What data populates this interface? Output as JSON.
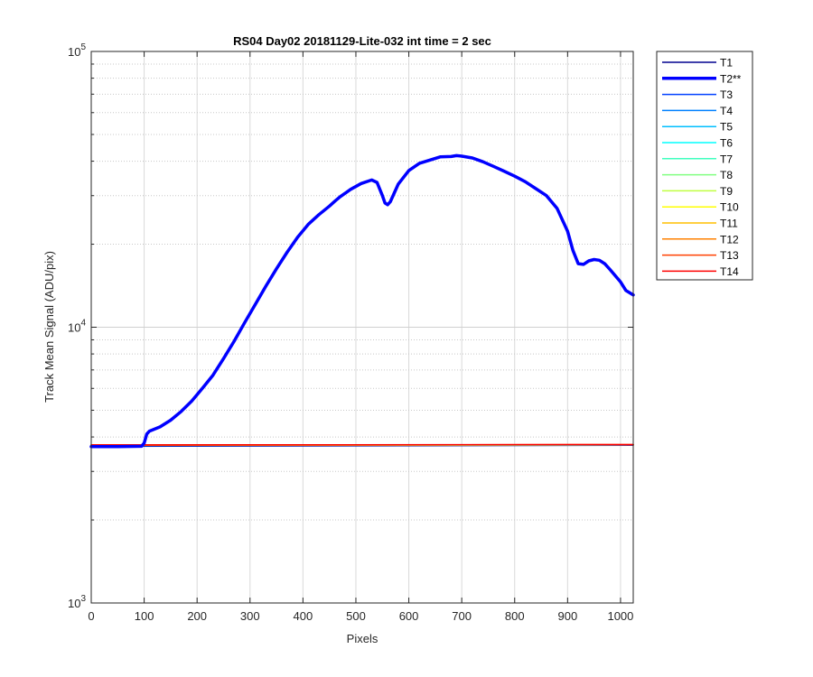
{
  "chart_data": {
    "type": "line",
    "title": "RS04 Day02 20181129-Lite-032 int time = 2 sec",
    "xlabel": "Pixels",
    "ylabel": "Track Mean Signal (ADU/pix)",
    "xlim": [
      0,
      1024
    ],
    "ylim": [
      1000,
      100000
    ],
    "yscale": "log",
    "x_ticks": [
      0,
      100,
      200,
      300,
      400,
      500,
      600,
      700,
      800,
      900,
      1000
    ],
    "y_ticks": [
      {
        "value": 1000,
        "base": "10",
        "exp": "3"
      },
      {
        "value": 10000,
        "base": "10",
        "exp": "4"
      },
      {
        "value": 100000,
        "base": "10",
        "exp": "5"
      }
    ],
    "grid": true,
    "legend_position": "outside-top-right",
    "highlighted_series": "T2**",
    "series": [
      {
        "name": "T1",
        "color": "#00008f",
        "x": [
          0,
          1024
        ],
        "y": [
          3700,
          3730
        ]
      },
      {
        "name": "T2**",
        "color": "#0000ff",
        "highlight": true,
        "x": [
          0,
          50,
          95,
          100,
          105,
          110,
          130,
          150,
          170,
          190,
          210,
          230,
          250,
          270,
          290,
          310,
          330,
          350,
          370,
          390,
          410,
          430,
          450,
          460,
          470,
          490,
          510,
          530,
          540,
          550,
          555,
          560,
          565,
          580,
          600,
          620,
          640,
          660,
          680,
          690,
          700,
          720,
          740,
          760,
          780,
          800,
          820,
          840,
          860,
          880,
          900,
          910,
          920,
          930,
          940,
          950,
          960,
          970,
          980,
          1000,
          1010,
          1024
        ],
        "y": [
          3690,
          3690,
          3700,
          3800,
          4100,
          4200,
          4350,
          4600,
          4950,
          5400,
          6000,
          6700,
          7700,
          8900,
          10400,
          12100,
          14100,
          16300,
          18700,
          21200,
          23600,
          25600,
          27500,
          28600,
          29700,
          31600,
          33200,
          34200,
          33500,
          30000,
          28200,
          27800,
          28500,
          33000,
          37000,
          39300,
          40400,
          41500,
          41600,
          41900,
          41700,
          41100,
          39800,
          38300,
          36800,
          35300,
          33700,
          31800,
          30000,
          27000,
          22300,
          19000,
          17000,
          16900,
          17400,
          17600,
          17500,
          17000,
          16200,
          14600,
          13600,
          13100
        ]
      },
      {
        "name": "T3",
        "color": "#0040ff",
        "x": [
          0,
          1024
        ],
        "y": [
          3720,
          3740
        ]
      },
      {
        "name": "T4",
        "color": "#0080ff",
        "x": [
          0,
          1024
        ],
        "y": [
          3725,
          3745
        ]
      },
      {
        "name": "T5",
        "color": "#00bfff",
        "x": [
          0,
          1024
        ],
        "y": [
          3730,
          3745
        ]
      },
      {
        "name": "T6",
        "color": "#00ffff",
        "x": [
          0,
          1024
        ],
        "y": [
          3730,
          3745
        ]
      },
      {
        "name": "T7",
        "color": "#40ffbf",
        "x": [
          0,
          1024
        ],
        "y": [
          3732,
          3746
        ]
      },
      {
        "name": "T8",
        "color": "#80ff80",
        "x": [
          0,
          1024
        ],
        "y": [
          3733,
          3746
        ]
      },
      {
        "name": "T9",
        "color": "#bfff40",
        "x": [
          0,
          1024
        ],
        "y": [
          3734,
          3747
        ]
      },
      {
        "name": "T10",
        "color": "#ffff00",
        "x": [
          0,
          1024
        ],
        "y": [
          3735,
          3748
        ]
      },
      {
        "name": "T11",
        "color": "#ffbf00",
        "x": [
          0,
          1024
        ],
        "y": [
          3736,
          3749
        ]
      },
      {
        "name": "T12",
        "color": "#ff8000",
        "x": [
          0,
          1024
        ],
        "y": [
          3738,
          3750
        ]
      },
      {
        "name": "T13",
        "color": "#ff4000",
        "x": [
          0,
          1024
        ],
        "y": [
          3740,
          3752
        ]
      },
      {
        "name": "T14",
        "color": "#ff0000",
        "x": [
          0,
          1024
        ],
        "y": [
          3742,
          3755
        ]
      }
    ]
  }
}
